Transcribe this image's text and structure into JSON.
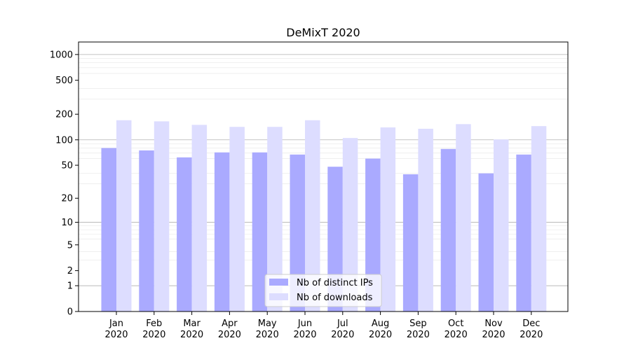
{
  "chart_data": {
    "type": "bar",
    "scale": "symlog",
    "title": "DeMixT 2020",
    "xlabel": "",
    "ylabel": "",
    "categories": [
      "Jan\n2020",
      "Feb\n2020",
      "Mar\n2020",
      "Apr\n2020",
      "May\n2020",
      "Jun\n2020",
      "Jul\n2020",
      "Aug\n2020",
      "Sep\n2020",
      "Oct\n2020",
      "Nov\n2020",
      "Dec\n2020"
    ],
    "series": [
      {
        "name": "Nb of distinct IPs",
        "color": "#aaaaff",
        "values": [
          80,
          75,
          62,
          71,
          71,
          67,
          48,
          60,
          39,
          78,
          40,
          67
        ]
      },
      {
        "name": "Nb of downloads",
        "color": "#ddddff",
        "values": [
          170,
          165,
          150,
          142,
          142,
          170,
          105,
          140,
          135,
          153,
          101,
          145
        ]
      }
    ],
    "y_ticks": [
      0,
      1,
      2,
      5,
      10,
      20,
      50,
      100,
      200,
      500,
      1000
    ],
    "ylim": [
      0,
      1400
    ],
    "grid": true,
    "legend_position": "bottom-center"
  }
}
